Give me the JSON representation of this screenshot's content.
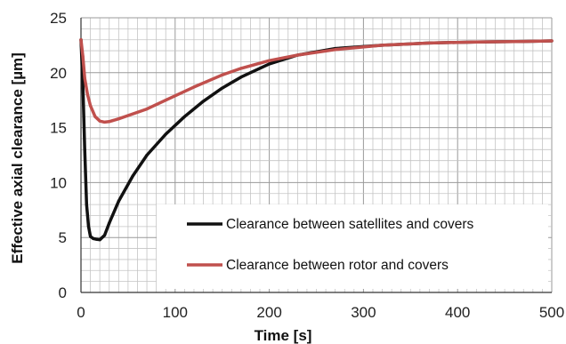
{
  "chart_data": {
    "type": "line",
    "title": "",
    "xlabel": "Time [s]",
    "ylabel": "Effective axial clearance [µm]",
    "xlim": [
      0,
      500
    ],
    "ylim": [
      0,
      25
    ],
    "x_ticks": [
      "0",
      "100",
      "200",
      "300",
      "400",
      "500"
    ],
    "y_ticks": [
      "0",
      "5",
      "10",
      "15",
      "20",
      "25"
    ],
    "grid": true,
    "legend_position": "bottom-right inside",
    "series": [
      {
        "name": "Clearance between satellites and covers",
        "color": "#111111",
        "x": [
          0,
          2,
          4,
          6,
          8,
          10,
          13,
          16,
          20,
          25,
          30,
          40,
          55,
          70,
          90,
          110,
          130,
          150,
          170,
          200,
          230,
          270,
          320,
          370,
          420,
          470,
          500
        ],
        "y": [
          23,
          19,
          13,
          8,
          6,
          5.1,
          4.9,
          4.85,
          4.8,
          5.2,
          6.3,
          8.3,
          10.6,
          12.5,
          14.4,
          16.0,
          17.4,
          18.6,
          19.6,
          20.8,
          21.6,
          22.2,
          22.5,
          22.7,
          22.8,
          22.85,
          22.9
        ]
      },
      {
        "name": "Clearance between rotor and covers",
        "color": "#c0504d",
        "x": [
          0,
          2,
          4,
          7,
          10,
          15,
          20,
          25,
          30,
          40,
          50,
          70,
          90,
          120,
          150,
          170,
          200,
          230,
          270,
          320,
          370,
          420,
          470,
          500
        ],
        "y": [
          23,
          21.5,
          19.5,
          18,
          17,
          16,
          15.6,
          15.5,
          15.55,
          15.8,
          16.1,
          16.7,
          17.5,
          18.7,
          19.8,
          20.4,
          21.1,
          21.6,
          22.1,
          22.5,
          22.7,
          22.8,
          22.85,
          22.9
        ]
      }
    ]
  }
}
